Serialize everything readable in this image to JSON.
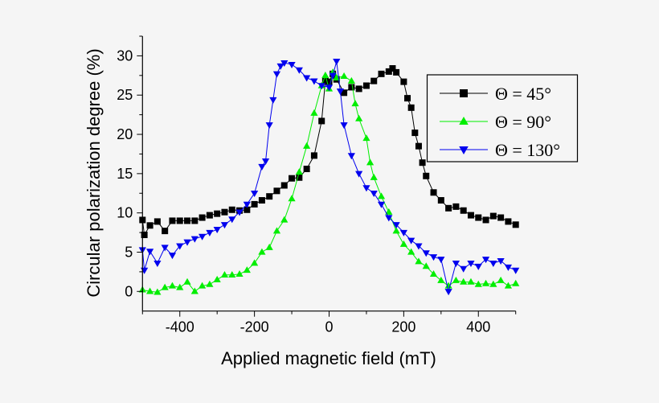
{
  "chart_data": {
    "type": "scatter",
    "title": "",
    "xlabel": "Applied magnetic field (mT)",
    "ylabel": "Circular polarization degree (%)",
    "xlim": [
      -500,
      500
    ],
    "ylim": [
      -2.5,
      32.5
    ],
    "xticks": [
      -400,
      -200,
      0,
      200,
      400
    ],
    "yticks": [
      0,
      5,
      10,
      15,
      20,
      25,
      30
    ],
    "grid": false,
    "legend_position": "top-right",
    "series": [
      {
        "name": "Θ = 45°",
        "color": "#000000",
        "marker": "square",
        "x": [
          -500,
          -495,
          -480,
          -460,
          -440,
          -420,
          -400,
          -380,
          -360,
          -340,
          -320,
          -300,
          -280,
          -260,
          -240,
          -220,
          -200,
          -180,
          -160,
          -140,
          -120,
          -100,
          -80,
          -60,
          -40,
          -20,
          -10,
          0,
          10,
          20,
          40,
          60,
          80,
          100,
          120,
          140,
          160,
          170,
          180,
          200,
          210,
          220,
          230,
          240,
          250,
          260,
          280,
          300,
          320,
          340,
          360,
          380,
          400,
          420,
          440,
          460,
          480,
          500
        ],
        "y": [
          9.1,
          7.2,
          8.4,
          8.9,
          7.7,
          9.0,
          9.0,
          9.0,
          9.0,
          9.4,
          9.7,
          9.9,
          10.1,
          10.4,
          10.3,
          10.4,
          11.1,
          11.6,
          12.1,
          12.8,
          13.5,
          14.4,
          14.5,
          15.6,
          17.3,
          21.7,
          26.8,
          26.7,
          27.7,
          27.0,
          25.3,
          26.0,
          25.8,
          26.2,
          26.8,
          27.7,
          28.0,
          28.4,
          27.9,
          26.7,
          24.6,
          23.4,
          20.2,
          18.5,
          16.4,
          14.7,
          12.6,
          11.6,
          10.6,
          10.8,
          10.3,
          9.7,
          9.4,
          9.1,
          9.6,
          9.4,
          8.9,
          8.5
        ]
      },
      {
        "name": "Θ = 90°",
        "color": "#00ee00",
        "marker": "triangle-up",
        "x": [
          -500,
          -480,
          -460,
          -440,
          -420,
          -400,
          -380,
          -360,
          -340,
          -320,
          -300,
          -280,
          -260,
          -240,
          -220,
          -200,
          -180,
          -160,
          -140,
          -120,
          -100,
          -80,
          -60,
          -40,
          -20,
          -10,
          0,
          10,
          20,
          40,
          60,
          70,
          80,
          100,
          110,
          120,
          140,
          160,
          180,
          200,
          220,
          240,
          260,
          280,
          300,
          320,
          340,
          360,
          380,
          400,
          420,
          440,
          460,
          480,
          500
        ],
        "y": [
          0.2,
          0.0,
          -0.1,
          0.5,
          0.7,
          0.5,
          1.2,
          0.0,
          0.7,
          0.9,
          1.5,
          2.1,
          2.1,
          2.2,
          2.7,
          3.6,
          5.0,
          5.6,
          7.7,
          9.1,
          11.8,
          15.2,
          18.5,
          22.7,
          26.2,
          27.5,
          25.8,
          27.9,
          27.2,
          27.4,
          26.8,
          23.9,
          22.0,
          19.5,
          16.4,
          14.5,
          12.1,
          10.1,
          7.7,
          6.0,
          5.0,
          3.8,
          3.2,
          2.2,
          1.4,
          0.7,
          1.4,
          1.2,
          1.2,
          0.9,
          1.0,
          0.9,
          1.4,
          0.7,
          1.0
        ]
      },
      {
        "name": "Θ = 130°",
        "color": "#0000ee",
        "marker": "triangle-down",
        "x": [
          -500,
          -495,
          -480,
          -460,
          -440,
          -420,
          -400,
          -380,
          -360,
          -340,
          -320,
          -300,
          -280,
          -260,
          -240,
          -220,
          -200,
          -180,
          -170,
          -160,
          -150,
          -140,
          -130,
          -120,
          -100,
          -80,
          -60,
          -40,
          -20,
          0,
          10,
          20,
          30,
          40,
          60,
          80,
          100,
          120,
          140,
          160,
          180,
          200,
          220,
          240,
          260,
          280,
          300,
          320,
          340,
          360,
          380,
          400,
          420,
          440,
          460,
          480,
          500
        ],
        "y": [
          5.3,
          2.7,
          5.1,
          3.6,
          5.6,
          4.6,
          5.8,
          6.3,
          6.7,
          7.0,
          7.5,
          7.9,
          8.5,
          9.2,
          10.1,
          11.1,
          12.5,
          15.9,
          16.6,
          21.2,
          24.4,
          27.7,
          28.7,
          29.1,
          28.9,
          28.2,
          27.2,
          26.8,
          26.2,
          26.0,
          27.5,
          29.3,
          25.5,
          21.2,
          17.3,
          15.0,
          13.2,
          12.5,
          11.1,
          9.4,
          8.5,
          7.5,
          6.5,
          5.8,
          4.9,
          4.4,
          4.1,
          0.0,
          3.6,
          2.9,
          3.6,
          3.2,
          4.1,
          3.6,
          3.9,
          3.1,
          2.7
        ]
      }
    ]
  }
}
